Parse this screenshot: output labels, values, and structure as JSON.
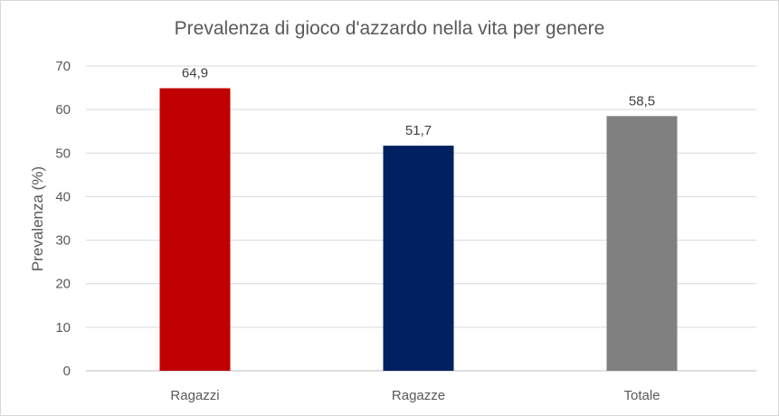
{
  "chart_data": {
    "type": "bar",
    "title": "Prevalenza di gioco d'azzardo nella vita per genere",
    "xlabel": "",
    "ylabel": "Prevalenza (%)",
    "categories": [
      "Ragazzi",
      "Ragazze",
      "Totale"
    ],
    "values": [
      64.9,
      51.7,
      58.5
    ],
    "value_labels": [
      "64,9",
      "51,7",
      "58,5"
    ],
    "colors": [
      "#c00000",
      "#002060",
      "#808080"
    ],
    "ylim": [
      0,
      70
    ],
    "yticks": [
      0,
      10,
      20,
      30,
      40,
      50,
      60,
      70
    ],
    "grid": true,
    "legend": "none"
  }
}
